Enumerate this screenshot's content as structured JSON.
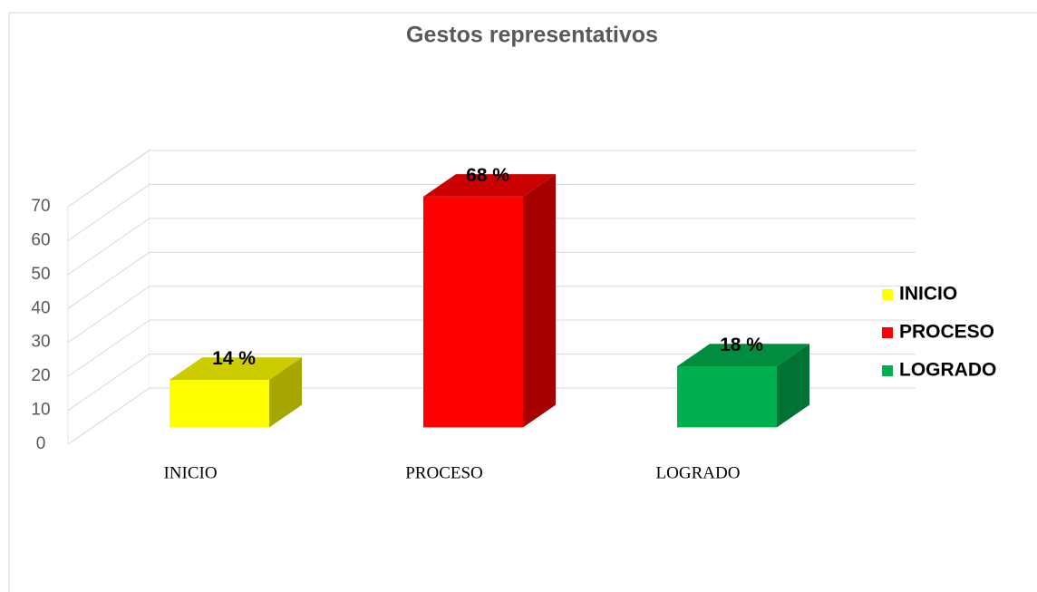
{
  "chart_data": {
    "type": "bar3d",
    "title": "Gestos representativos",
    "categories": [
      "INICIO",
      "PROCESO",
      "LOGRADO"
    ],
    "values": [
      14,
      68,
      18
    ],
    "value_labels": [
      "14 %",
      "68 %",
      "18 %"
    ],
    "colors": [
      "#ffff00",
      "#ff0000",
      "#00b050"
    ],
    "ylim": [
      0,
      70
    ],
    "yticks": [
      0,
      10,
      20,
      30,
      40,
      50,
      60,
      70
    ],
    "grid": true,
    "legend": "right"
  }
}
